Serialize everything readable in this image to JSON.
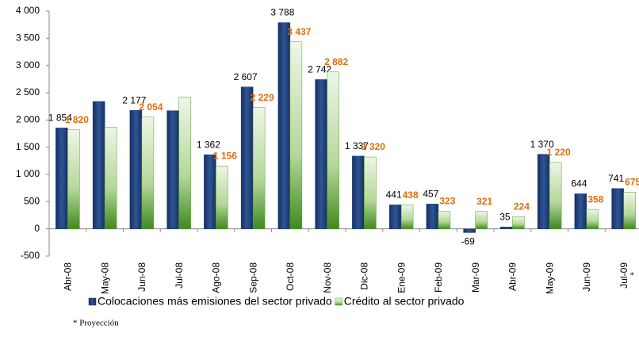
{
  "chart_data": {
    "type": "bar",
    "categories": [
      "Abr-08",
      "May-08",
      "Jun-08",
      "Jul-08",
      "Ago-08",
      "Sep-08",
      "Oct-08",
      "Nov-08",
      "Dic-08",
      "Ene-09",
      "Feb-09",
      "Mar-09",
      "Abr-09",
      "May-09",
      "Jun-09",
      "Jul-09"
    ],
    "series": [
      {
        "name": "Colocaciones más emisiones del sector privado",
        "color": "#1f3c74",
        "values": [
          1854,
          2340,
          2177,
          2170,
          1362,
          2607,
          3788,
          2742,
          1337,
          441,
          457,
          -69,
          35,
          1370,
          644,
          741
        ],
        "value_labels": [
          "1 854",
          null,
          "2 177",
          null,
          "1 362",
          "2 607",
          "3 788",
          "2 742",
          "1 337",
          "441",
          "457",
          "-69",
          "35",
          "1 370",
          "644",
          "741"
        ]
      },
      {
        "name": "Crédito al sector privado",
        "color": "#5a9e2f",
        "values": [
          1820,
          1870,
          2054,
          2420,
          1156,
          2229,
          3437,
          2882,
          1320,
          438,
          323,
          321,
          224,
          1220,
          358,
          675
        ],
        "value_labels": [
          "1 820",
          null,
          "2 054",
          null,
          "1 156",
          "2 229",
          "3 437",
          "2 882",
          "1 320",
          "438",
          "323",
          "321",
          "224",
          "1 220",
          "358",
          "675"
        ]
      }
    ],
    "ylim": [
      -500,
      4000
    ],
    "yticks": [
      -500,
      0,
      500,
      {
        "value": 1000,
        "label": "1 000"
      },
      {
        "value": 1500,
        "label": "1 500"
      },
      {
        "value": 2000,
        "label": "2 000"
      },
      {
        "value": 2500,
        "label": "2 500"
      },
      {
        "value": 3000,
        "label": "3 000"
      },
      {
        "value": 3500,
        "label": "3 500"
      },
      {
        "value": 4000,
        "label": "4 000"
      }
    ],
    "legend": "bottom",
    "annotations": [
      "*",
      "* Proyección"
    ]
  }
}
